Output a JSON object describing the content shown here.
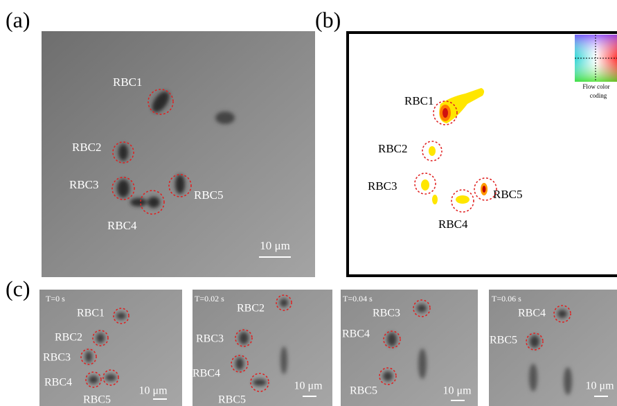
{
  "panels": [
    {
      "label": "(a)",
      "annotations": [
        "RBC1",
        "RBC2",
        "RBC3",
        "RBC4",
        "RBC5"
      ],
      "scale_bar": "10 μm"
    },
    {
      "label": "(b)",
      "annotations": [
        "RBC1",
        "RBC2",
        "RBC3",
        "RBC4",
        "RBC5"
      ],
      "legend": [
        "Flow color",
        "coding"
      ]
    },
    {
      "label": "(c)",
      "frames": [
        {
          "time": "T=0 s",
          "annotations": [
            "RBC1",
            "RBC2",
            "RBC3",
            "RBC4",
            "RBC5"
          ],
          "scale_bar": "10 μm"
        },
        {
          "time": "T=0.02 s",
          "annotations": [
            "RBC2",
            "RBC3",
            "RBC4",
            "RBC5"
          ],
          "scale_bar": "10 μm"
        },
        {
          "time": "T=0.04 s",
          "annotations": [
            "RBC3",
            "RBC4",
            "RBC5"
          ],
          "scale_bar": "10 μm"
        },
        {
          "time": "T=0.06 s",
          "annotations": [
            "RBC4",
            "RBC5"
          ],
          "scale_bar": "10 μm"
        }
      ]
    }
  ]
}
